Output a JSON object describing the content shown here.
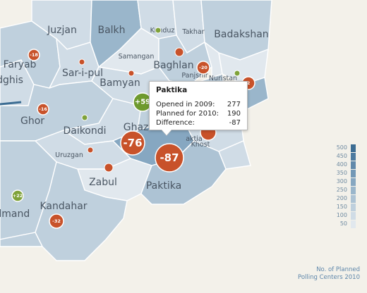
{
  "provinces": [
    {
      "name": "Juzjan",
      "level": 100
    },
    {
      "name": "Balkh",
      "level": 250
    },
    {
      "name": "Kunduz",
      "level": 100
    },
    {
      "name": "Takhar",
      "level": 100
    },
    {
      "name": "Badakshan",
      "level": 150
    },
    {
      "name": "Faryab",
      "level": 150
    },
    {
      "name": "Sar-i-pul",
      "level": 100
    },
    {
      "name": "Samangan",
      "level": 50
    },
    {
      "name": "Baghlan",
      "level": 150
    },
    {
      "name": "Panjshir",
      "level": 50
    },
    {
      "name": "Nuristan",
      "level": 50
    },
    {
      "name": "Badghis",
      "level": 100
    },
    {
      "name": "Bamyan",
      "level": 100
    },
    {
      "name": "Ghor",
      "level": 150
    },
    {
      "name": "Daikondi",
      "level": 100
    },
    {
      "name": "Ghazni",
      "level": 300
    },
    {
      "name": "Paktia",
      "level": 100
    },
    {
      "name": "Khost",
      "level": 100
    },
    {
      "name": "Uruzgan",
      "level": 100
    },
    {
      "name": "Zabul",
      "level": 50
    },
    {
      "name": "Paktika",
      "level": 200
    },
    {
      "name": "Helmand",
      "level": 150
    },
    {
      "name": "Kandahar",
      "level": 150
    }
  ],
  "province_labels": {
    "juzjan": "Juzjan",
    "balkh": "Balkh",
    "kunduz": "Kunduz",
    "takhar": "Takhar",
    "badakshan": "Badakshan",
    "faryab": "Faryab",
    "saripul": "Sar-i-pul",
    "samangan": "Samangan",
    "baghlan": "Baghlan",
    "panjshir": "Panjshir",
    "nuristan": "Nuristan",
    "badghis": "dghis",
    "bamyan": "Bamyan",
    "ghor": "Ghor",
    "daikondi": "Daikondi",
    "ghazni": "Ghazn",
    "paktia": "aktia",
    "khost": "Khost",
    "uruzgan": "Uruzgan",
    "zabul": "Zabul",
    "paktika": "Paktika",
    "helmand": "elmand",
    "kandahar": "Kandahar"
  },
  "bubbles": [
    {
      "id": "faryab",
      "value": "-18",
      "color": "#c8522a"
    },
    {
      "id": "saripul",
      "value": "",
      "color": "#c8522a"
    },
    {
      "id": "kunduz",
      "value": "",
      "color": "#7fa23a"
    },
    {
      "id": "samangan",
      "value": "",
      "color": "#c8522a"
    },
    {
      "id": "baghlan",
      "value": "",
      "color": "#c8522a"
    },
    {
      "id": "panjshir",
      "value": "-20",
      "color": "#c8522a"
    },
    {
      "id": "nuristan",
      "value": "",
      "color": "#7fa23a"
    },
    {
      "id": "kunar",
      "value": "2",
      "color": "#c8522a"
    },
    {
      "id": "wardak",
      "value": "+59",
      "color": "#6e9a2e"
    },
    {
      "id": "ghor",
      "value": "-16",
      "color": "#c8522a"
    },
    {
      "id": "daikondi",
      "value": "",
      "color": "#7fa23a"
    },
    {
      "id": "ghazni",
      "value": "-76",
      "color": "#c8522a"
    },
    {
      "id": "paktika",
      "value": "-87",
      "color": "#c8522a"
    },
    {
      "id": "khost",
      "value": "",
      "color": "#c8522a"
    },
    {
      "id": "uruzgan",
      "value": "",
      "color": "#c8522a"
    },
    {
      "id": "zabul",
      "value": "",
      "color": "#c8522a"
    },
    {
      "id": "helmand",
      "value": "+22",
      "color": "#7fa23a"
    },
    {
      "id": "kandahar",
      "value": "-32",
      "color": "#c8522a"
    }
  ],
  "tooltip": {
    "title": "Paktika",
    "rows": [
      {
        "label": "Opened in 2009:",
        "value": "277"
      },
      {
        "label": "Planned for 2010:",
        "value": "190"
      },
      {
        "label": "Difference:",
        "value": "-87"
      }
    ]
  },
  "legend": {
    "steps": [
      {
        "label": "500",
        "color": "#3c6d93"
      },
      {
        "label": "450",
        "color": "#4d7ba0"
      },
      {
        "label": "400",
        "color": "#6089ab"
      },
      {
        "label": "350",
        "color": "#7298b6"
      },
      {
        "label": "300",
        "color": "#86a7c1"
      },
      {
        "label": "250",
        "color": "#9ab6cb"
      },
      {
        "label": "200",
        "color": "#adc3d4"
      },
      {
        "label": "150",
        "color": "#bfd0dd"
      },
      {
        "label": "100",
        "color": "#d0dce6"
      },
      {
        "label": "50",
        "color": "#e1e8ee"
      }
    ],
    "title_line1": "No. of Planned",
    "title_line2": "Polling Centers 2010"
  },
  "colors": {
    "background": "#f3f1ea",
    "negative": "#c8522a",
    "positive": "#7fa23a"
  }
}
